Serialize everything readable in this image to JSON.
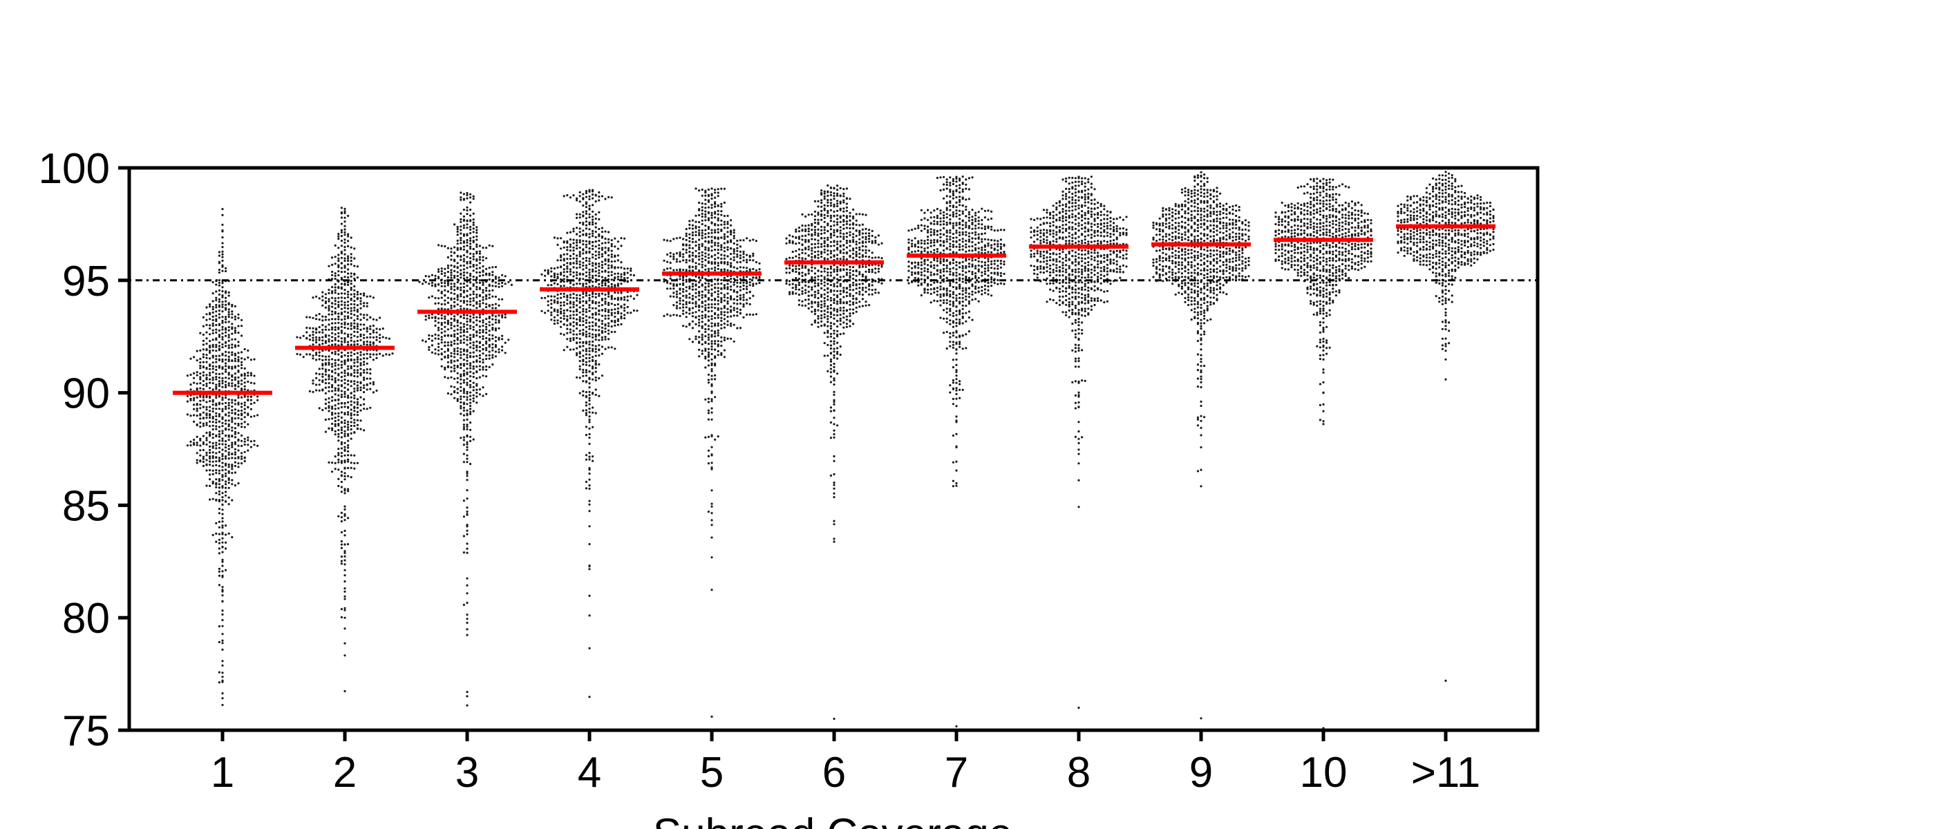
{
  "chart_data": {
    "type": "scatter",
    "title": "",
    "xlabel": "Subread Coverage",
    "ylabel": "",
    "ylim": [
      75,
      100
    ],
    "yticks": [
      75,
      80,
      85,
      90,
      95,
      100
    ],
    "categories": [
      "1",
      "2",
      "3",
      "4",
      "5",
      "6",
      "7",
      "8",
      "9",
      "10",
      ">11"
    ],
    "medians": [
      90.0,
      92.0,
      93.6,
      94.6,
      95.3,
      95.8,
      96.1,
      96.5,
      96.6,
      96.8,
      97.4
    ],
    "maxima": [
      98.2,
      98.2,
      98.9,
      99.0,
      99.1,
      99.2,
      99.6,
      99.6,
      99.8,
      99.5,
      99.8
    ],
    "minima": [
      75.0,
      75.0,
      76.1,
      76.5,
      75.6,
      75.5,
      75.2,
      76.0,
      75.5,
      75.1,
      77.2
    ],
    "spread": [
      2.6,
      2.4,
      2.2,
      2.0,
      1.7,
      1.6,
      1.5,
      1.4,
      1.3,
      1.2,
      0.9
    ],
    "reference_line": {
      "y": 95,
      "style": "dotted"
    },
    "marker_color": "#1a1a1a",
    "median_color": "#ff0000",
    "grid": false,
    "legend": "none"
  }
}
